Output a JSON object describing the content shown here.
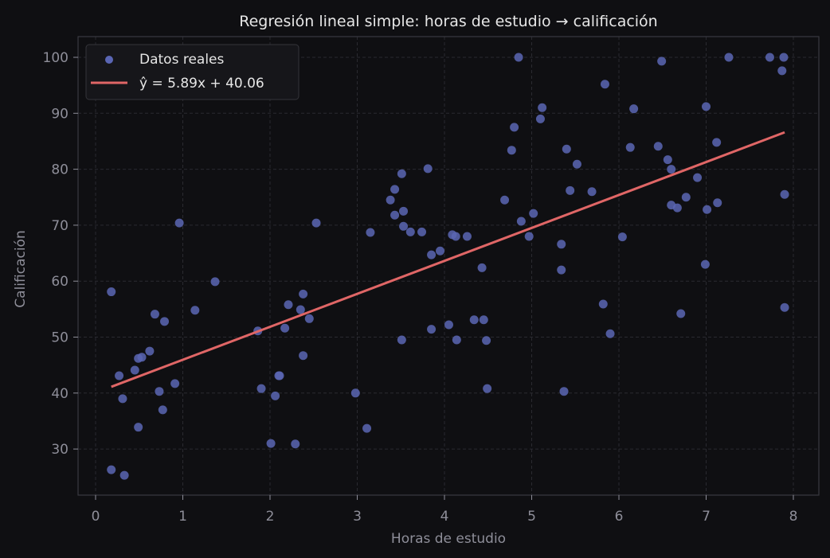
{
  "chart_data": {
    "type": "scatter",
    "title": "Regresión lineal simple: horas de estudio → calificación",
    "xlabel": "Horas de estudio",
    "ylabel": "Calificación",
    "xlim": [
      -0.2,
      8.3
    ],
    "ylim": [
      21.5,
      103.5
    ],
    "xticks": [
      0,
      1,
      2,
      3,
      4,
      5,
      6,
      7,
      8
    ],
    "yticks": [
      30,
      40,
      50,
      60,
      70,
      80,
      90,
      100
    ],
    "grid": true,
    "legend_position": "upper left",
    "colors": {
      "background": "#0f0f12",
      "points": "#5a66b4",
      "line": "#e06666",
      "grid": "#2a2a30",
      "spine": "#3a3a40",
      "text": "#e6e6e6",
      "tick": "#8e8e99"
    },
    "series": [
      {
        "name": "Datos reales",
        "kind": "scatter",
        "points": [
          [
            0.18,
            58.1
          ],
          [
            0.18,
            26.3
          ],
          [
            0.27,
            43.1
          ],
          [
            0.31,
            39.0
          ],
          [
            0.33,
            25.3
          ],
          [
            0.45,
            44.1
          ],
          [
            0.49,
            33.9
          ],
          [
            0.49,
            46.2
          ],
          [
            0.53,
            46.4
          ],
          [
            0.62,
            47.5
          ],
          [
            0.68,
            54.1
          ],
          [
            0.73,
            40.3
          ],
          [
            0.77,
            37.0
          ],
          [
            0.79,
            52.8
          ],
          [
            0.91,
            41.7
          ],
          [
            0.96,
            70.4
          ],
          [
            1.14,
            54.8
          ],
          [
            1.37,
            59.9
          ],
          [
            1.86,
            51.1
          ],
          [
            1.9,
            40.8
          ],
          [
            2.01,
            31.0
          ],
          [
            2.06,
            39.5
          ],
          [
            2.1,
            43.1
          ],
          [
            2.11,
            43.1
          ],
          [
            2.17,
            51.6
          ],
          [
            2.21,
            55.8
          ],
          [
            2.29,
            30.9
          ],
          [
            2.35,
            54.9
          ],
          [
            2.38,
            57.7
          ],
          [
            2.38,
            46.7
          ],
          [
            2.45,
            53.3
          ],
          [
            2.53,
            70.4
          ],
          [
            2.98,
            40.0
          ],
          [
            3.11,
            33.7
          ],
          [
            3.15,
            68.7
          ],
          [
            3.38,
            74.5
          ],
          [
            3.43,
            76.4
          ],
          [
            3.43,
            71.8
          ],
          [
            3.51,
            79.2
          ],
          [
            3.51,
            49.5
          ],
          [
            3.53,
            72.5
          ],
          [
            3.53,
            69.8
          ],
          [
            3.61,
            68.8
          ],
          [
            3.74,
            68.8
          ],
          [
            3.81,
            80.1
          ],
          [
            3.85,
            64.7
          ],
          [
            3.85,
            51.4
          ],
          [
            3.95,
            65.4
          ],
          [
            4.05,
            52.2
          ],
          [
            4.09,
            68.3
          ],
          [
            4.13,
            68.0
          ],
          [
            4.14,
            49.5
          ],
          [
            4.26,
            68.0
          ],
          [
            4.34,
            53.1
          ],
          [
            4.43,
            62.4
          ],
          [
            4.45,
            53.1
          ],
          [
            4.48,
            49.4
          ],
          [
            4.49,
            40.8
          ],
          [
            4.69,
            74.5
          ],
          [
            4.77,
            83.4
          ],
          [
            4.8,
            87.5
          ],
          [
            4.85,
            100.0
          ],
          [
            4.88,
            70.7
          ],
          [
            4.97,
            68.0
          ],
          [
            5.02,
            72.1
          ],
          [
            5.1,
            89.0
          ],
          [
            5.12,
            91.0
          ],
          [
            5.34,
            66.6
          ],
          [
            5.34,
            62.0
          ],
          [
            5.37,
            40.3
          ],
          [
            5.4,
            83.6
          ],
          [
            5.44,
            76.2
          ],
          [
            5.52,
            80.9
          ],
          [
            5.69,
            76.0
          ],
          [
            5.82,
            55.9
          ],
          [
            5.84,
            95.2
          ],
          [
            5.9,
            50.6
          ],
          [
            6.04,
            67.9
          ],
          [
            6.13,
            83.9
          ],
          [
            6.17,
            90.8
          ],
          [
            6.45,
            84.1
          ],
          [
            6.49,
            99.3
          ],
          [
            6.56,
            81.7
          ],
          [
            6.6,
            80.0
          ],
          [
            6.6,
            73.6
          ],
          [
            6.67,
            73.1
          ],
          [
            6.71,
            54.2
          ],
          [
            6.77,
            75.0
          ],
          [
            6.9,
            78.5
          ],
          [
            6.99,
            63.0
          ],
          [
            7.0,
            91.2
          ],
          [
            7.01,
            72.8
          ],
          [
            7.12,
            84.8
          ],
          [
            7.13,
            74.0
          ],
          [
            7.26,
            100.0
          ],
          [
            7.73,
            100.0
          ],
          [
            7.89,
            100.0
          ],
          [
            7.87,
            97.6
          ],
          [
            7.9,
            75.5
          ],
          [
            7.9,
            55.3
          ]
        ]
      },
      {
        "name": "ŷ = 5.89x + 40.06",
        "kind": "line",
        "slope": 5.89,
        "intercept": 40.06,
        "x": [
          0.18,
          7.9
        ],
        "y": [
          41.12,
          86.59
        ]
      }
    ]
  },
  "legend": {
    "items": [
      {
        "label": "Datos reales",
        "marker": "dot"
      },
      {
        "label": "ŷ = 5.89x + 40.06",
        "marker": "line"
      }
    ]
  }
}
